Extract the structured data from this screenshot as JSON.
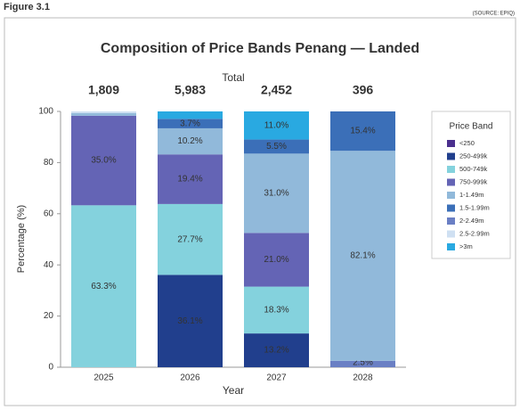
{
  "figure_label": "Figure 3.1",
  "source": "(SOURCE: EPIQ)",
  "chart_data": {
    "type": "stacked_bar",
    "title": "Composition of Price Bands Penang — Landed",
    "totals_title": "Total",
    "totals": [
      1809,
      5983,
      2452,
      396
    ],
    "total_labels": [
      "1,809",
      "5,983",
      "2,452",
      "396"
    ],
    "x_label": "Year",
    "y_label": "Percentage (%)",
    "categories": [
      "2025",
      "2026",
      "2027",
      "2028"
    ],
    "ylim": [
      0,
      100
    ],
    "yticks": [
      0,
      20,
      40,
      60,
      80,
      100
    ],
    "legend_title": "Price Band",
    "legend": "right",
    "series": [
      {
        "name": "<250",
        "color": "#4a2f8e",
        "label_color": "#ffffff",
        "values": [
          null,
          null,
          null,
          null
        ],
        "value_labels": [
          null,
          null,
          null,
          null
        ]
      },
      {
        "name": "250-499k",
        "color": "#213f8d",
        "label_color": "#ffffff",
        "values": [
          null,
          36.1,
          13.2,
          null
        ],
        "value_labels": [
          null,
          "36.1%",
          "13.2%",
          null
        ]
      },
      {
        "name": "500-749k",
        "color": "#84d2dd",
        "label_color": "#1f2d4a",
        "values": [
          63.3,
          27.7,
          18.3,
          null
        ],
        "value_labels": [
          "63.3%",
          "27.7%",
          "18.3%",
          null
        ]
      },
      {
        "name": "750-999k",
        "color": "#6464b5",
        "label_color": "#ffffff",
        "values": [
          35.0,
          19.4,
          21.0,
          null
        ],
        "value_labels": [
          "35.0%",
          "19.4%",
          "21.0%",
          null
        ]
      },
      {
        "name": "1-1.49m",
        "color": "#91b9da",
        "label_color": "#1f2d4a",
        "values": [
          1.0,
          10.2,
          31.0,
          82.1
        ],
        "value_labels": [
          null,
          "10.2%",
          "31.0%",
          "82.1%"
        ]
      },
      {
        "name": "1.5-1.99m",
        "color": "#3b6fb8",
        "label_color": "#ffffff",
        "values": [
          null,
          3.7,
          5.5,
          15.4
        ],
        "value_labels": [
          null,
          "3.7%",
          "5.5%",
          "15.4%"
        ]
      },
      {
        "name": "2-2.49m",
        "color": "#6a7fc4",
        "label_color": "#ffffff",
        "values": [
          null,
          null,
          null,
          2.5
        ],
        "value_labels": [
          null,
          null,
          null,
          "2.5%"
        ]
      },
      {
        "name": "2.5-2.99m",
        "color": "#cfe0f2",
        "label_color": "#1f2d4a",
        "values": [
          0.7,
          null,
          null,
          null
        ],
        "value_labels": [
          null,
          null,
          null,
          null
        ]
      },
      {
        "name": ">3m",
        "color": "#29a9e1",
        "label_color": "#1f2d4a",
        "values": [
          null,
          2.9,
          11.0,
          null
        ],
        "value_labels": [
          null,
          null,
          "11.0%",
          null
        ]
      }
    ]
  }
}
